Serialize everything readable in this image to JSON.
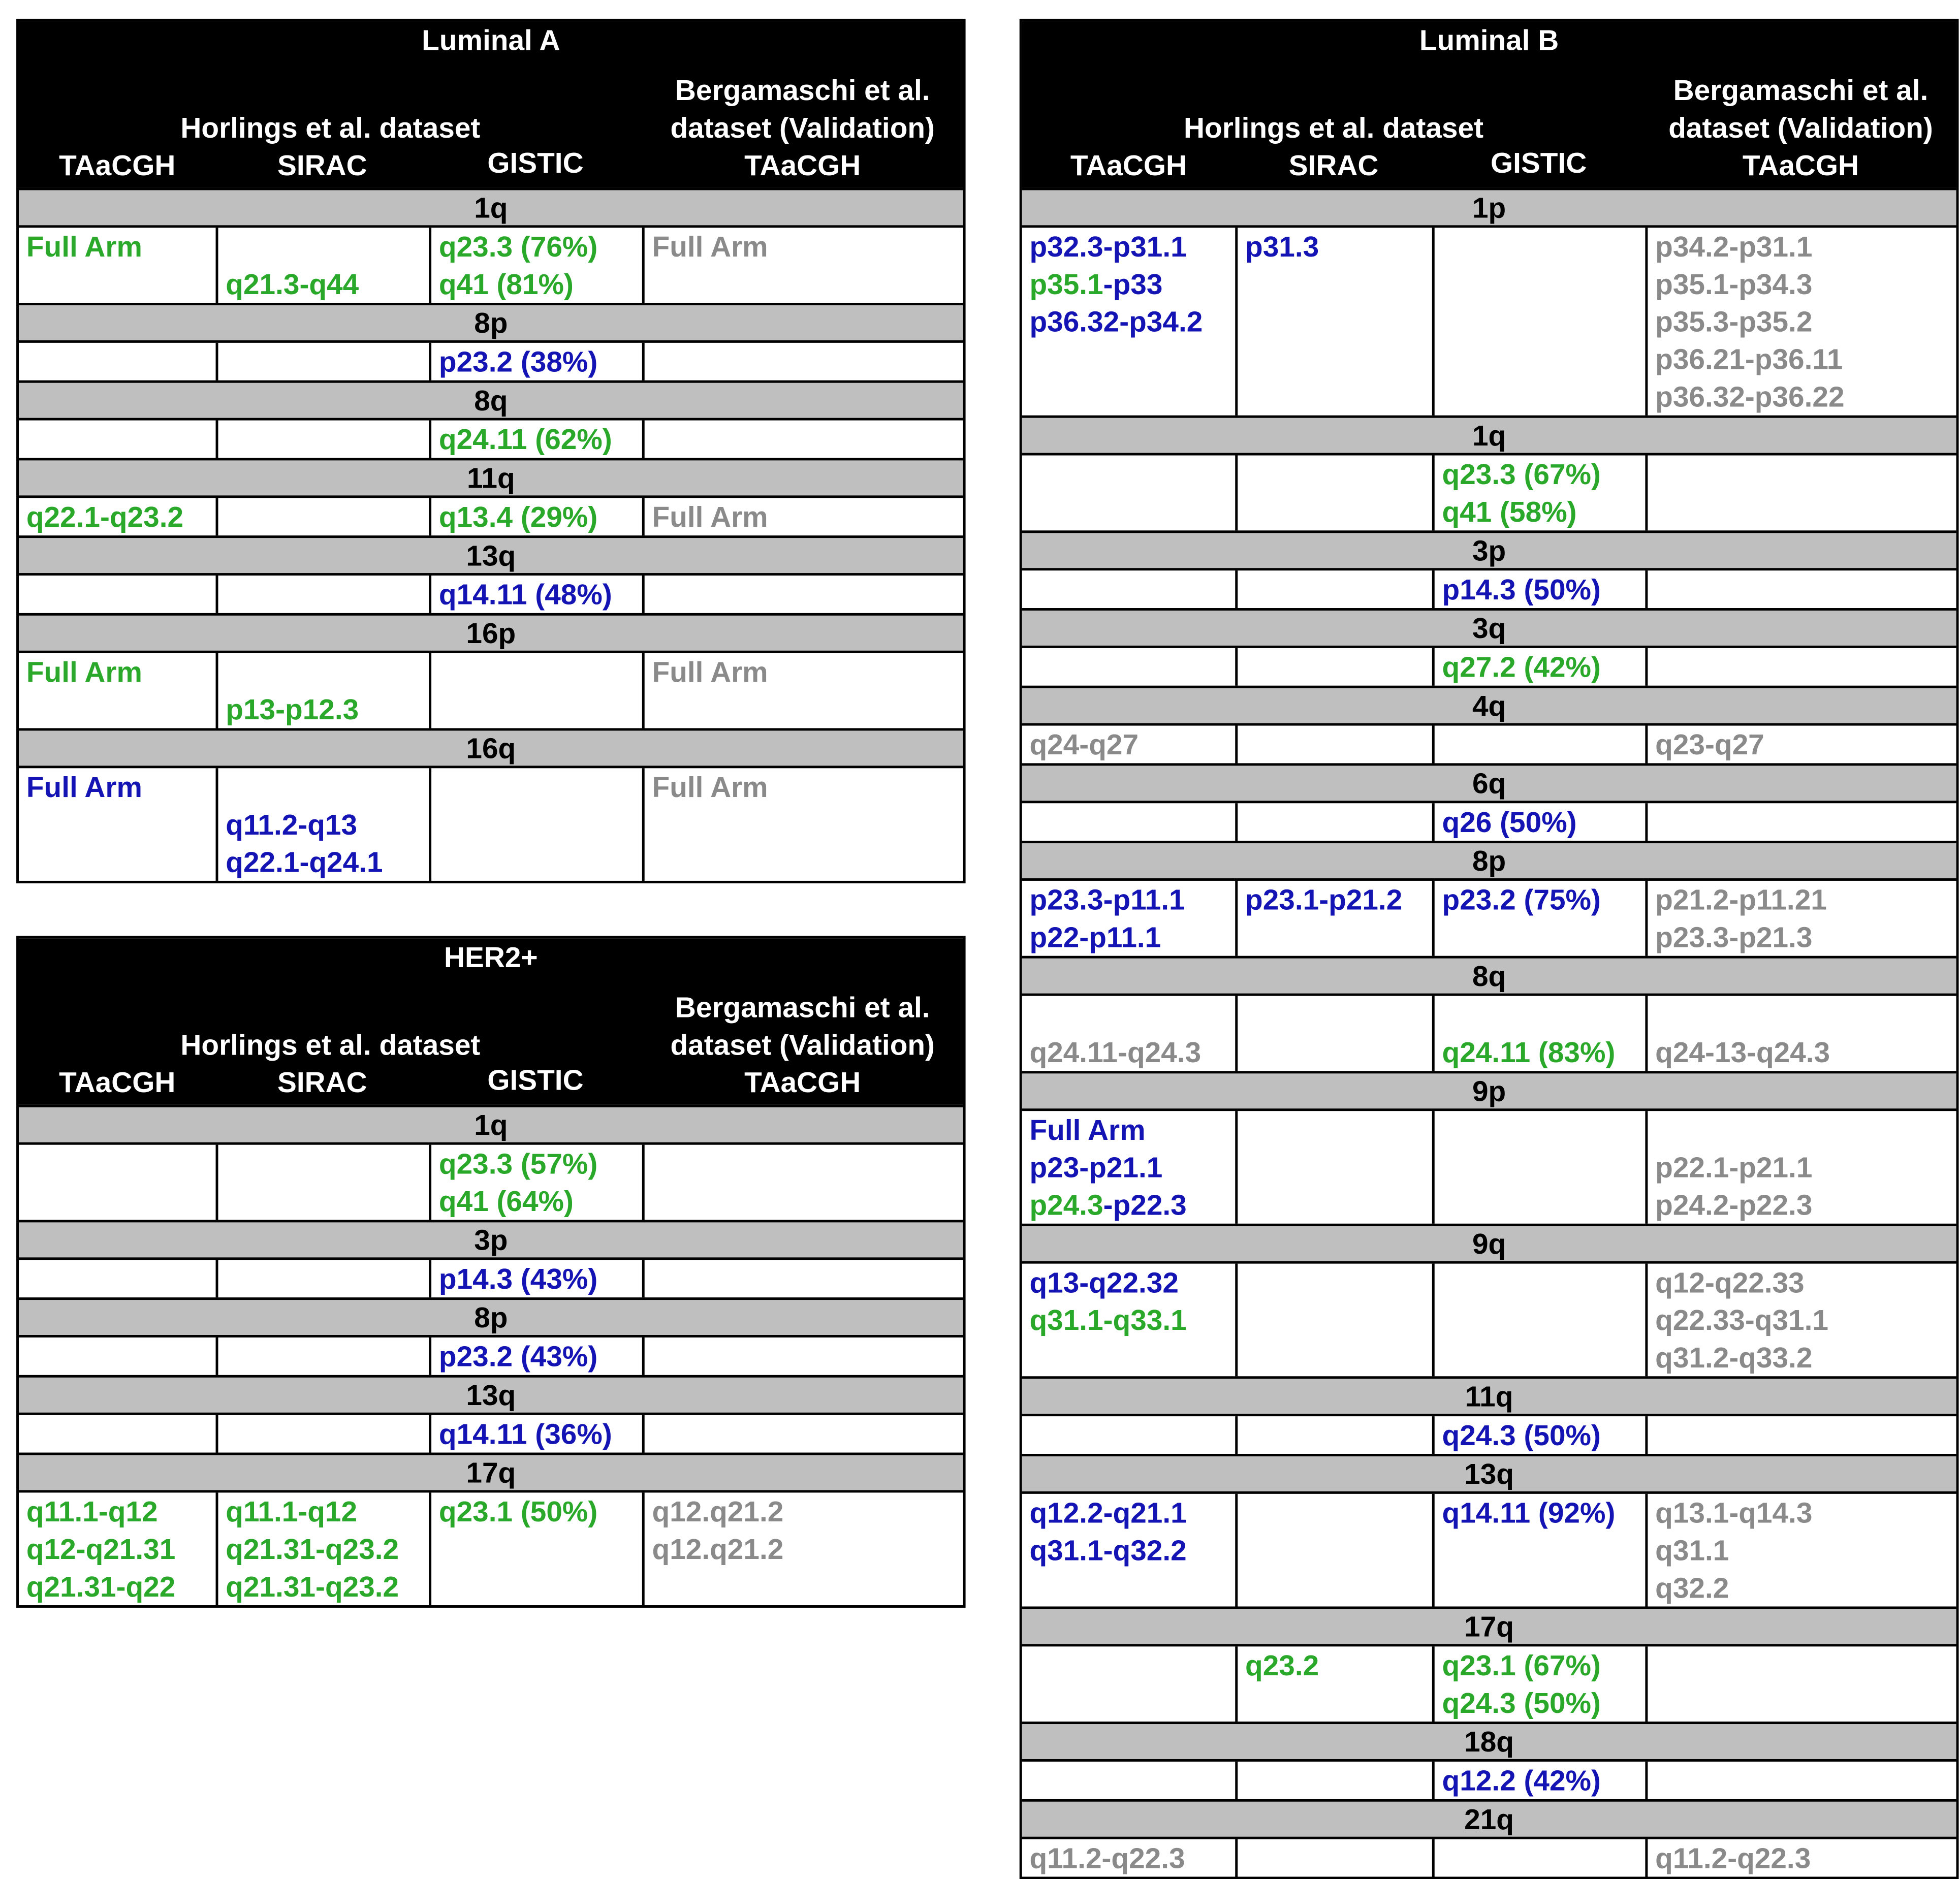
{
  "tables": [
    {
      "title": "Luminal A",
      "group1": "Horlings et al. dataset",
      "group2": "Bergamaschi et al. dataset (Validation)",
      "columns": [
        "TAaCGH",
        "SIRAC",
        "GISTIC",
        "TAaCGH"
      ],
      "sections": [
        {
          "arm": "1q",
          "cells": [
            [
              {
                "text": "Full Arm",
                "color": "#2aa82a"
              }
            ],
            [
              null,
              {
                "text": "q21.3-q44",
                "color": "#2aa82a"
              }
            ],
            [
              {
                "text": "q23.3 (76%)",
                "color": "#2aa82a"
              },
              {
                "text": "q41 (81%)",
                "color": "#2aa82a"
              }
            ],
            [
              {
                "text": "Full Arm",
                "color": "#8a8a8a"
              }
            ]
          ]
        },
        {
          "arm": "8p",
          "cells": [
            [],
            [],
            [
              {
                "text": "p23.2 (38%)",
                "color": "#1414b4"
              }
            ],
            []
          ]
        },
        {
          "arm": "8q",
          "cells": [
            [],
            [],
            [
              {
                "text": "q24.11 (62%)",
                "color": "#2aa82a"
              }
            ],
            []
          ]
        },
        {
          "arm": "11q",
          "cells": [
            [
              {
                "text": "q22.1-q23.2",
                "color": "#2aa82a"
              }
            ],
            [],
            [
              {
                "text": "q13.4 (29%)",
                "color": "#2aa82a"
              }
            ],
            [
              {
                "text": "Full Arm",
                "color": "#8a8a8a"
              }
            ]
          ]
        },
        {
          "arm": "13q",
          "cells": [
            [],
            [],
            [
              {
                "text": "q14.11 (48%)",
                "color": "#1414b4"
              }
            ],
            []
          ]
        },
        {
          "arm": "16p",
          "cells": [
            [
              {
                "text": "Full Arm",
                "color": "#2aa82a"
              }
            ],
            [
              null,
              {
                "text": "p13-p12.3",
                "color": "#2aa82a"
              }
            ],
            [],
            [
              {
                "text": "Full Arm",
                "color": "#8a8a8a"
              }
            ]
          ]
        },
        {
          "arm": "16q",
          "cells": [
            [
              {
                "text": "Full Arm",
                "color": "#1414b4"
              }
            ],
            [
              null,
              {
                "text": "q11.2-q13",
                "color": "#1414b4"
              },
              {
                "text": "q22.1-q24.1",
                "color": "#1414b4"
              }
            ],
            [],
            [
              {
                "text": "Full Arm",
                "color": "#8a8a8a"
              }
            ]
          ]
        }
      ]
    },
    {
      "title": "HER2+",
      "group1": "Horlings et al. dataset",
      "group2": "Bergamaschi et al. dataset (Validation)",
      "columns": [
        "TAaCGH",
        "SIRAC",
        "GISTIC",
        "TAaCGH"
      ],
      "sections": [
        {
          "arm": "1q",
          "cells": [
            [],
            [],
            [
              {
                "text": "q23.3 (57%)",
                "color": "#2aa82a"
              },
              {
                "text": "q41 (64%)",
                "color": "#2aa82a"
              }
            ],
            []
          ]
        },
        {
          "arm": "3p",
          "cells": [
            [],
            [],
            [
              {
                "text": "p14.3 (43%)",
                "color": "#1414b4"
              }
            ],
            []
          ]
        },
        {
          "arm": "8p",
          "cells": [
            [],
            [],
            [
              {
                "text": "p23.2 (43%)",
                "color": "#1414b4"
              }
            ],
            []
          ]
        },
        {
          "arm": "13q",
          "cells": [
            [],
            [],
            [
              {
                "text": "q14.11 (36%)",
                "color": "#1414b4"
              }
            ],
            []
          ]
        },
        {
          "arm": "17q",
          "cells": [
            [
              {
                "text": "q11.1-q12",
                "color": "#2aa82a"
              },
              {
                "text": "q12-q21.31",
                "color": "#2aa82a"
              },
              {
                "text": "q21.31-q22",
                "color": "#2aa82a"
              }
            ],
            [
              {
                "text": "q11.1-q12",
                "color": "#2aa82a"
              },
              {
                "text": "q21.31-q23.2",
                "color": "#2aa82a"
              },
              {
                "text": "q21.31-q23.2",
                "color": "#2aa82a"
              }
            ],
            [
              {
                "text": "q23.1 (50%)",
                "color": "#2aa82a"
              }
            ],
            [
              {
                "text": "q12.q21.2",
                "color": "#8a8a8a"
              },
              {
                "text": "q12.q21.2",
                "color": "#8a8a8a"
              }
            ]
          ]
        }
      ]
    },
    {
      "title": "Luminal B",
      "group1": "Horlings et al. dataset",
      "group2": "Bergamaschi et al. dataset (Validation)",
      "columns": [
        "TAaCGH",
        "SIRAC",
        "GISTIC",
        "TAaCGH"
      ],
      "sections": [
        {
          "arm": "1p",
          "cells": [
            [
              {
                "text": "p32.3-p31.1",
                "color": "#1414b4"
              },
              [
                {
                  "text": "p35.1",
                  "color": "#2aa82a"
                },
                {
                  "text": "-p33",
                  "color": "#1414b4"
                }
              ],
              {
                "text": "p36.32-p34.2",
                "color": "#1414b4"
              }
            ],
            [
              {
                "text": "p31.3",
                "color": "#1414b4"
              }
            ],
            [],
            [
              {
                "text": "p34.2-p31.1",
                "color": "#8a8a8a"
              },
              {
                "text": "p35.1-p34.3",
                "color": "#8a8a8a"
              },
              {
                "text": "p35.3-p35.2",
                "color": "#8a8a8a"
              },
              {
                "text": "p36.21-p36.11",
                "color": "#8a8a8a"
              },
              {
                "text": "p36.32-p36.22",
                "color": "#8a8a8a"
              }
            ]
          ]
        },
        {
          "arm": "1q",
          "cells": [
            [],
            [],
            [
              {
                "text": "q23.3 (67%)",
                "color": "#2aa82a"
              },
              {
                "text": "q41 (58%)",
                "color": "#2aa82a"
              }
            ],
            []
          ]
        },
        {
          "arm": "3p",
          "cells": [
            [],
            [],
            [
              {
                "text": "p14.3 (50%)",
                "color": "#1414b4"
              }
            ],
            []
          ]
        },
        {
          "arm": "3q",
          "cells": [
            [],
            [],
            [
              {
                "text": "q27.2 (42%)",
                "color": "#2aa82a"
              }
            ],
            []
          ]
        },
        {
          "arm": "4q",
          "cells": [
            [
              {
                "text": "q24-q27",
                "color": "#8a8a8a"
              }
            ],
            [],
            [],
            [
              {
                "text": "q23-q27",
                "color": "#8a8a8a"
              }
            ]
          ]
        },
        {
          "arm": "6q",
          "cells": [
            [],
            [],
            [
              {
                "text": "q26 (50%)",
                "color": "#1414b4"
              }
            ],
            []
          ]
        },
        {
          "arm": "8p",
          "cells": [
            [
              {
                "text": "p23.3-p11.1",
                "color": "#1414b4"
              },
              {
                "text": "p22-p11.1",
                "color": "#1414b4"
              }
            ],
            [
              {
                "text": "p23.1-p21.2",
                "color": "#1414b4"
              }
            ],
            [
              {
                "text": "p23.2 (75%)",
                "color": "#1414b4"
              }
            ],
            [
              {
                "text": "p21.2-p11.21",
                "color": "#8a8a8a"
              },
              {
                "text": "p23.3-p21.3",
                "color": "#8a8a8a"
              }
            ]
          ]
        },
        {
          "arm": "8q",
          "cells": [
            [
              null,
              {
                "text": "q24.11-q24.3",
                "color": "#8a8a8a"
              }
            ],
            [],
            [
              null,
              {
                "text": "q24.11 (83%)",
                "color": "#2aa82a"
              }
            ],
            [
              null,
              {
                "text": "q24-13-q24.3",
                "color": "#8a8a8a"
              }
            ]
          ]
        },
        {
          "arm": "9p",
          "cells": [
            [
              {
                "text": "Full Arm",
                "color": "#1414b4"
              },
              {
                "text": "p23-p21.1",
                "color": "#1414b4"
              },
              [
                {
                  "text": "p24.3",
                  "color": "#2aa82a"
                },
                {
                  "text": "-p22.3",
                  "color": "#1414b4"
                }
              ]
            ],
            [],
            [],
            [
              null,
              {
                "text": "p22.1-p21.1",
                "color": "#8a8a8a"
              },
              {
                "text": "p24.2-p22.3",
                "color": "#8a8a8a"
              }
            ]
          ]
        },
        {
          "arm": "9q",
          "cells": [
            [
              {
                "text": "q13-q22.32",
                "color": "#1414b4"
              },
              {
                "text": "q31.1-q33.1",
                "color": "#2aa82a"
              }
            ],
            [],
            [],
            [
              {
                "text": "q12-q22.33",
                "color": "#8a8a8a"
              },
              {
                "text": "q22.33-q31.1",
                "color": "#8a8a8a"
              },
              {
                "text": "q31.2-q33.2",
                "color": "#8a8a8a"
              }
            ]
          ]
        },
        {
          "arm": "11q",
          "cells": [
            [],
            [],
            [
              {
                "text": "q24.3 (50%)",
                "color": "#1414b4"
              }
            ],
            []
          ]
        },
        {
          "arm": "13q",
          "cells": [
            [
              {
                "text": "q12.2-q21.1",
                "color": "#1414b4"
              },
              {
                "text": "q31.1-q32.2",
                "color": "#1414b4"
              }
            ],
            [],
            [
              {
                "text": "q14.11 (92%)",
                "color": "#1414b4"
              }
            ],
            [
              {
                "text": "q13.1-q14.3",
                "color": "#8a8a8a"
              },
              {
                "text": "q31.1",
                "color": "#8a8a8a"
              },
              {
                "text": "q32.2",
                "color": "#8a8a8a"
              }
            ]
          ]
        },
        {
          "arm": "17q",
          "cells": [
            [],
            [
              {
                "text": "q23.2",
                "color": "#2aa82a"
              }
            ],
            [
              {
                "text": "q23.1 (67%)",
                "color": "#2aa82a"
              },
              {
                "text": "q24.3 (50%)",
                "color": "#2aa82a"
              }
            ],
            []
          ]
        },
        {
          "arm": "18q",
          "cells": [
            [],
            [],
            [
              {
                "text": "q12.2 (42%)",
                "color": "#1414b4"
              }
            ],
            []
          ]
        },
        {
          "arm": "21q",
          "cells": [
            [
              {
                "text": "q11.2-q22.3",
                "color": "#8a8a8a"
              }
            ],
            [],
            [],
            [
              {
                "text": "q11.2-q22.3",
                "color": "#8a8a8a"
              }
            ]
          ]
        }
      ]
    }
  ]
}
